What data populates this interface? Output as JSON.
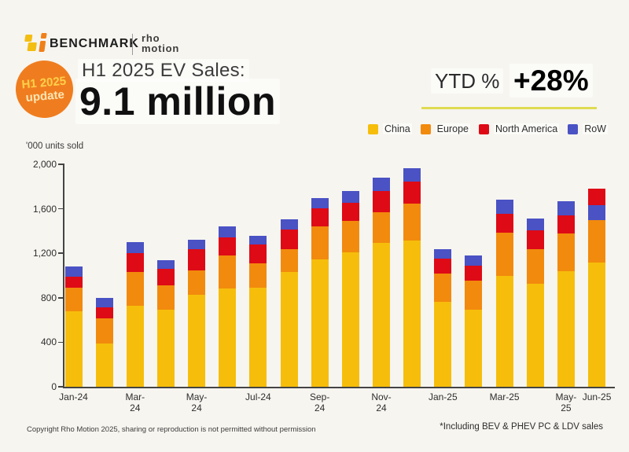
{
  "brand": {
    "benchmark_label": "BENCHMARK",
    "rho_line1": "rho",
    "rho_line2": "motion",
    "colors": {
      "benchmark_yellow": "#F3BE12",
      "benchmark_orange": "#F08019"
    }
  },
  "badge": {
    "line1": "H1 2025",
    "line2": "update",
    "bg_color": "#EF7D1F"
  },
  "header": {
    "title": "H1 2025 EV Sales:",
    "headline": "9.1 million",
    "ytd_label": "YTD %",
    "ytd_value": "+28%",
    "underline_color": "#DFDB52"
  },
  "legend": {
    "items": [
      {
        "label": "China",
        "color": "#F6BE0B"
      },
      {
        "label": "Europe",
        "color": "#F28A0D"
      },
      {
        "label": "North America",
        "color": "#DE0A16"
      },
      {
        "label": "RoW",
        "color": "#4A52C4"
      }
    ]
  },
  "chart_data": {
    "type": "bar",
    "stacked": true,
    "title": "H1 2025 EV Sales: 9.1 million",
    "ylabel": "'000 units sold",
    "xlabel": "",
    "ylim": [
      0,
      2000
    ],
    "grid": false,
    "legend_position": "top-right",
    "y_ticks": [
      {
        "value": 0,
        "label": "0"
      },
      {
        "value": 400,
        "label": "400"
      },
      {
        "value": 800,
        "label": "800"
      },
      {
        "value": 1200,
        "label": "1,200"
      },
      {
        "value": 1600,
        "label": "1,600"
      },
      {
        "value": 2000,
        "label": "2,000"
      }
    ],
    "series_colors": {
      "China": "#F6BE0B",
      "Europe": "#F28A0D",
      "North America": "#DE0A16",
      "RoW": "#4A52C4"
    },
    "categories": [
      "Jan-24",
      "Feb-24",
      "Mar-24",
      "Apr-24",
      "May-24",
      "Jun-24",
      "Jul-24",
      "Aug-24",
      "Sep-24",
      "Oct-24",
      "Nov-24",
      "Dec-24",
      "Jan-25",
      "Feb-25",
      "Mar-25",
      "Apr-25",
      "May-25",
      "Jun-25"
    ],
    "x_tick_labels": [
      {
        "index": 0,
        "text": "Jan-24"
      },
      {
        "index": 2,
        "text": "Mar-\n24"
      },
      {
        "index": 4,
        "text": "May-\n24"
      },
      {
        "index": 6,
        "text": "Jul-24"
      },
      {
        "index": 8,
        "text": "Sep-\n24"
      },
      {
        "index": 10,
        "text": "Nov-\n24"
      },
      {
        "index": 12,
        "text": "Jan-25"
      },
      {
        "index": 14,
        "text": "Mar-25"
      },
      {
        "index": 16,
        "text": "May-\n25"
      },
      {
        "index": 17,
        "text": "Jun-25"
      }
    ],
    "months": [
      {
        "month": "Jan-24",
        "total": 1080,
        "segments": [
          {
            "name": "China",
            "value": 680
          },
          {
            "name": "Europe",
            "value": 210
          },
          {
            "name": "North America",
            "value": 100
          },
          {
            "name": "RoW",
            "value": 90
          }
        ]
      },
      {
        "month": "Feb-24",
        "total": 800,
        "segments": [
          {
            "name": "China",
            "value": 390
          },
          {
            "name": "Europe",
            "value": 225
          },
          {
            "name": "North America",
            "value": 100
          },
          {
            "name": "RoW",
            "value": 85
          }
        ]
      },
      {
        "month": "Mar-24",
        "total": 1300,
        "segments": [
          {
            "name": "China",
            "value": 730
          },
          {
            "name": "Europe",
            "value": 305
          },
          {
            "name": "North America",
            "value": 165
          },
          {
            "name": "RoW",
            "value": 100
          }
        ]
      },
      {
        "month": "Apr-24",
        "total": 1140,
        "segments": [
          {
            "name": "China",
            "value": 690
          },
          {
            "name": "Europe",
            "value": 225
          },
          {
            "name": "North America",
            "value": 145
          },
          {
            "name": "RoW",
            "value": 80
          }
        ]
      },
      {
        "month": "May-24",
        "total": 1325,
        "segments": [
          {
            "name": "China",
            "value": 825
          },
          {
            "name": "Europe",
            "value": 220
          },
          {
            "name": "North America",
            "value": 190
          },
          {
            "name": "RoW",
            "value": 90
          }
        ]
      },
      {
        "month": "Jun-24",
        "total": 1440,
        "segments": [
          {
            "name": "China",
            "value": 880
          },
          {
            "name": "Europe",
            "value": 300
          },
          {
            "name": "North America",
            "value": 160
          },
          {
            "name": "RoW",
            "value": 100
          }
        ]
      },
      {
        "month": "Jul-24",
        "total": 1360,
        "segments": [
          {
            "name": "China",
            "value": 890
          },
          {
            "name": "Europe",
            "value": 220
          },
          {
            "name": "North America",
            "value": 170
          },
          {
            "name": "RoW",
            "value": 80
          }
        ]
      },
      {
        "month": "Aug-24",
        "total": 1505,
        "segments": [
          {
            "name": "China",
            "value": 1035
          },
          {
            "name": "Europe",
            "value": 200
          },
          {
            "name": "North America",
            "value": 180
          },
          {
            "name": "RoW",
            "value": 90
          }
        ]
      },
      {
        "month": "Sep-24",
        "total": 1695,
        "segments": [
          {
            "name": "China",
            "value": 1145
          },
          {
            "name": "Europe",
            "value": 300
          },
          {
            "name": "North America",
            "value": 160
          },
          {
            "name": "RoW",
            "value": 90
          }
        ]
      },
      {
        "month": "Oct-24",
        "total": 1760,
        "segments": [
          {
            "name": "China",
            "value": 1210
          },
          {
            "name": "Europe",
            "value": 280
          },
          {
            "name": "North America",
            "value": 165
          },
          {
            "name": "RoW",
            "value": 105
          }
        ]
      },
      {
        "month": "Nov-24",
        "total": 1880,
        "segments": [
          {
            "name": "China",
            "value": 1290
          },
          {
            "name": "Europe",
            "value": 280
          },
          {
            "name": "North America",
            "value": 190
          },
          {
            "name": "RoW",
            "value": 120
          }
        ]
      },
      {
        "month": "Dec-24",
        "total": 1965,
        "segments": [
          {
            "name": "China",
            "value": 1315
          },
          {
            "name": "Europe",
            "value": 330
          },
          {
            "name": "North America",
            "value": 200
          },
          {
            "name": "RoW",
            "value": 120
          }
        ]
      },
      {
        "month": "Jan-25",
        "total": 1240,
        "segments": [
          {
            "name": "China",
            "value": 760
          },
          {
            "name": "Europe",
            "value": 260
          },
          {
            "name": "North America",
            "value": 135
          },
          {
            "name": "RoW",
            "value": 85
          }
        ]
      },
      {
        "month": "Feb-25",
        "total": 1180,
        "segments": [
          {
            "name": "China",
            "value": 690
          },
          {
            "name": "Europe",
            "value": 265
          },
          {
            "name": "North America",
            "value": 135
          },
          {
            "name": "RoW",
            "value": 90
          }
        ]
      },
      {
        "month": "Mar-25",
        "total": 1685,
        "segments": [
          {
            "name": "China",
            "value": 995
          },
          {
            "name": "Europe",
            "value": 390
          },
          {
            "name": "North America",
            "value": 170
          },
          {
            "name": "RoW",
            "value": 130
          }
        ]
      },
      {
        "month": "Apr-25",
        "total": 1510,
        "segments": [
          {
            "name": "China",
            "value": 925
          },
          {
            "name": "Europe",
            "value": 315
          },
          {
            "name": "North America",
            "value": 165
          },
          {
            "name": "RoW",
            "value": 105
          }
        ]
      },
      {
        "month": "May-25",
        "total": 1670,
        "segments": [
          {
            "name": "China",
            "value": 1040
          },
          {
            "name": "Europe",
            "value": 335
          },
          {
            "name": "North America",
            "value": 165
          },
          {
            "name": "RoW",
            "value": 130
          }
        ]
      },
      {
        "month": "Jun-25",
        "total": 1780,
        "segments": [
          {
            "name": "China",
            "value": 1115
          },
          {
            "name": "Europe",
            "value": 385
          },
          {
            "name": "RoW",
            "value": 130
          },
          {
            "name": "North America",
            "value": 150
          }
        ]
      }
    ]
  },
  "footer": {
    "copyright": "Copyright Rho Motion 2025, sharing or reproduction is not permitted without permission",
    "note": "*Including BEV & PHEV PC & LDV sales"
  }
}
